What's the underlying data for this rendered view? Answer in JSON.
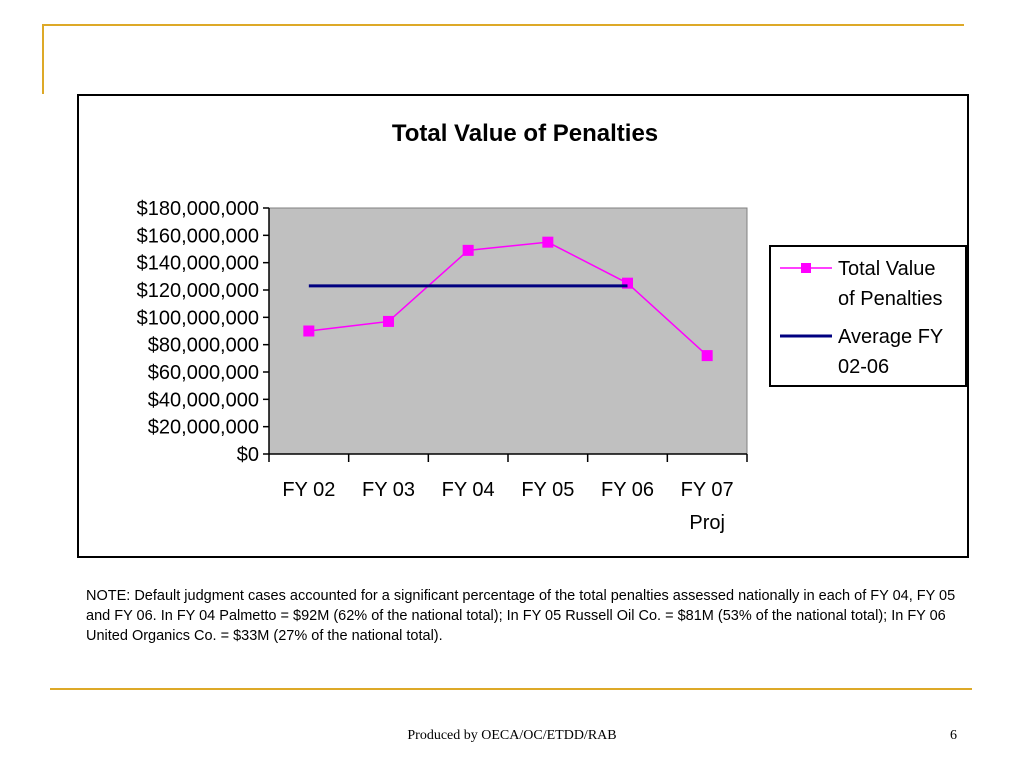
{
  "slide": {
    "note": "NOTE: Default judgment cases accounted for a significant percentage of the total penalties assessed nationally in each of FY 04, FY 05 and FY 06.  In FY 04 Palmetto = $92M (62% of the national total); In FY 05 Russell Oil Co. = $81M (53% of the national total); In FY 06 United Organics Co. = $33M (27% of the national total).",
    "footer": "Produced by OECA/OC/ETDD/RAB",
    "page_number": "6",
    "accent_color": "#DDA928"
  },
  "chart_data": {
    "type": "line",
    "title": "Total Value of Penalties",
    "categories": [
      [
        "FY 02"
      ],
      [
        "FY 03"
      ],
      [
        "FY 04"
      ],
      [
        "FY 05"
      ],
      [
        "FY 06"
      ],
      [
        "FY 07",
        "Proj"
      ]
    ],
    "ylim": [
      0,
      180000000
    ],
    "yticks": [
      "$0",
      "$20,000,000",
      "$40,000,000",
      "$60,000,000",
      "$80,000,000",
      "$100,000,000",
      "$120,000,000",
      "$140,000,000",
      "$160,000,000",
      "$180,000,000"
    ],
    "plot_background": "#C0C0C0",
    "legend_position": "right",
    "series": [
      {
        "name": [
          "Total Value",
          "of Penalties"
        ],
        "color": "#FF00FF",
        "marker": "square",
        "values": [
          90000000,
          97000000,
          149000000,
          155000000,
          125000000,
          72000000
        ]
      },
      {
        "name": [
          "Average FY",
          "02-06"
        ],
        "color": "#000080",
        "marker": "none",
        "values": [
          123000000,
          123000000,
          123000000,
          123000000,
          123000000,
          null
        ]
      }
    ]
  }
}
